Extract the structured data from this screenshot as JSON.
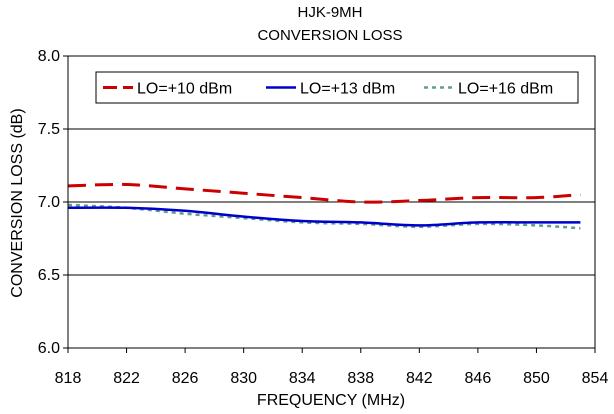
{
  "chart_data": {
    "type": "line",
    "title": "HJK-9MH",
    "subtitle": "CONVERSION LOSS",
    "xlabel": "FREQUENCY (MHz)",
    "ylabel": "CONVERSION LOSS (dB)",
    "xlim": [
      818,
      854
    ],
    "ylim": [
      6.0,
      8.0
    ],
    "xticks": [
      "818",
      "822",
      "826",
      "830",
      "834",
      "838",
      "842",
      "846",
      "850",
      "854"
    ],
    "yticks": [
      "6.0",
      "6.5",
      "7.0",
      "7.5",
      "8.0"
    ],
    "grid": "horizontal",
    "legend_position": "top",
    "series": [
      {
        "name": "LO=+10 dBm",
        "color": "#cc0000",
        "style": "dashed",
        "x": [
          818,
          822,
          826,
          830,
          834,
          838,
          842,
          846,
          850,
          853
        ],
        "y": [
          7.11,
          7.12,
          7.09,
          7.06,
          7.03,
          7.0,
          7.01,
          7.03,
          7.03,
          7.05
        ]
      },
      {
        "name": "LO=+13 dBm",
        "color": "#0000cc",
        "style": "solid",
        "x": [
          818,
          822,
          826,
          830,
          834,
          838,
          842,
          846,
          850,
          853
        ],
        "y": [
          6.96,
          6.96,
          6.94,
          6.9,
          6.87,
          6.86,
          6.84,
          6.86,
          6.86,
          6.86
        ]
      },
      {
        "name": "LO=+16 dBm",
        "color": "#5f9f8a",
        "style": "dotted",
        "x": [
          818,
          822,
          826,
          830,
          834,
          838,
          842,
          846,
          850,
          853
        ],
        "y": [
          6.98,
          6.96,
          6.92,
          6.89,
          6.86,
          6.85,
          6.83,
          6.85,
          6.84,
          6.82
        ]
      }
    ]
  }
}
